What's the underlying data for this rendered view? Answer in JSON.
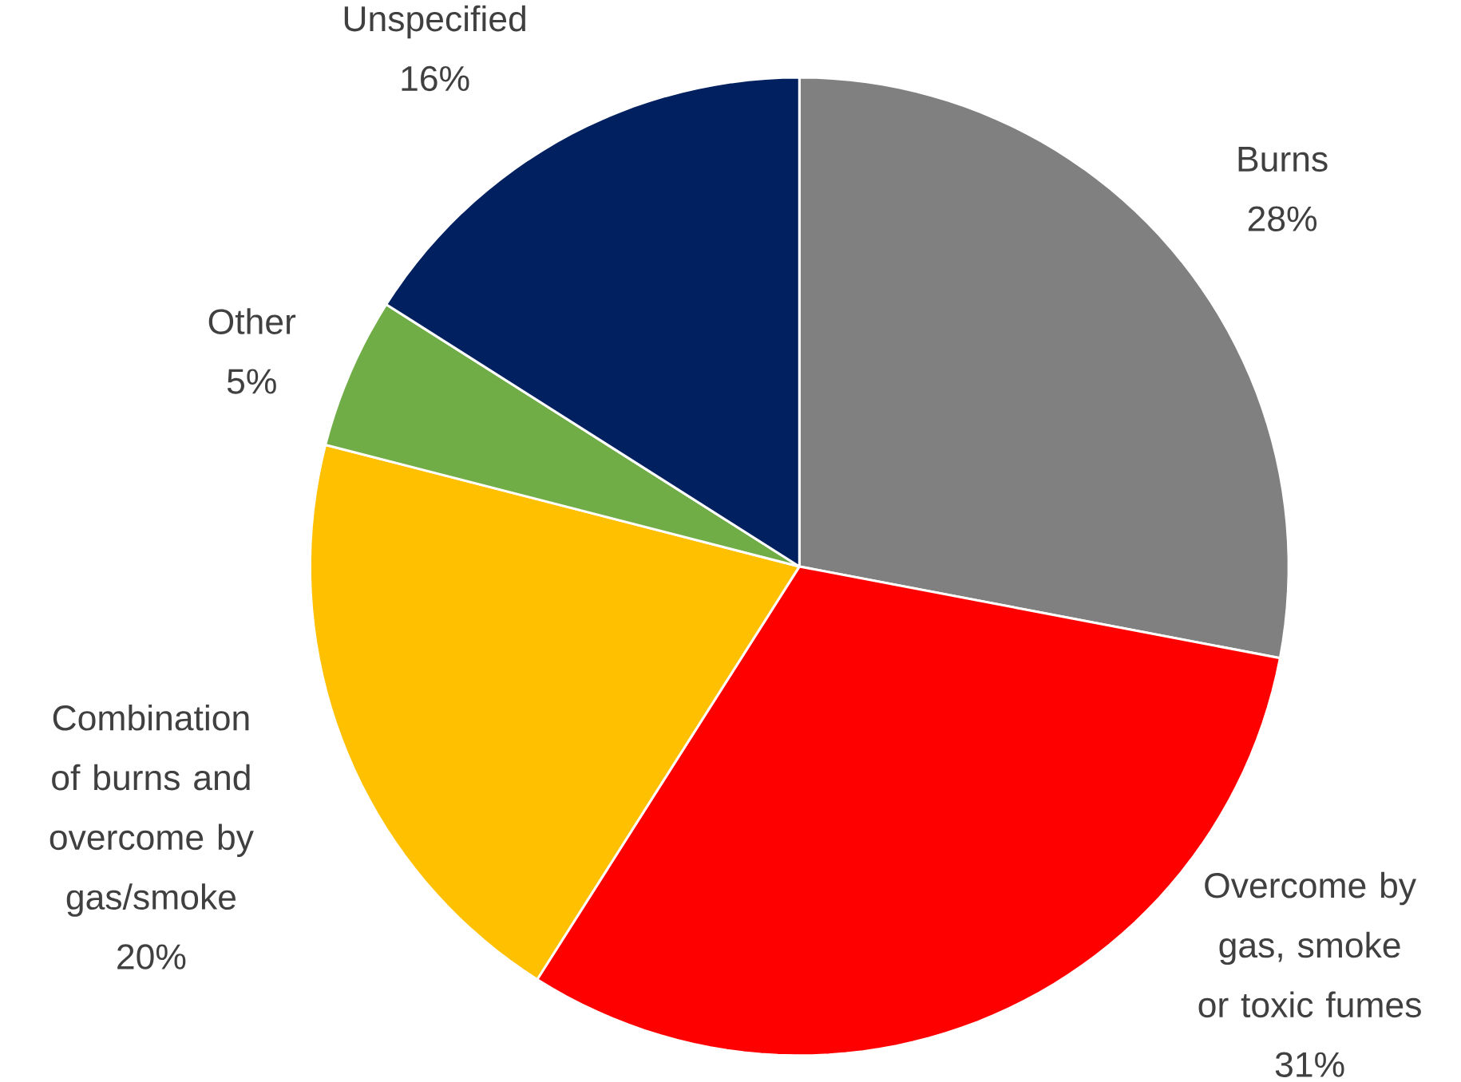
{
  "chart_data": {
    "type": "pie",
    "categories": [
      "Burns",
      "Overcome by gas, smoke or toxic fumes",
      "Combination of burns and overcome by gas/smoke",
      "Other",
      "Unspecified"
    ],
    "values": [
      28,
      31,
      20,
      5,
      16
    ],
    "value_labels": [
      "28%",
      "31%",
      "20%",
      "5%",
      "16%"
    ],
    "colors": [
      "#808080",
      "#ff0000",
      "#ffc000",
      "#70ad47",
      "#002060"
    ]
  }
}
